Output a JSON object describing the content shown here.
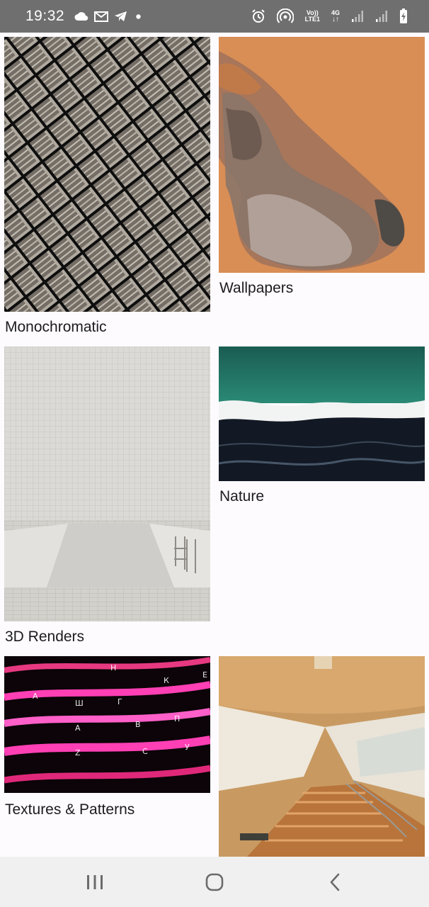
{
  "status_bar": {
    "time": "19:32",
    "left_icons": [
      "cloud-icon",
      "mail-icon",
      "telegram-icon",
      "dot-icon"
    ],
    "right_icons": [
      "alarm-icon",
      "hotspot-icon",
      "volte-icon",
      "4g-icon",
      "signal-icon",
      "signal-icon",
      "battery-charging-icon"
    ],
    "volte_top": "Vo))",
    "volte_bottom": "LTE1",
    "network_type": "4G"
  },
  "categories": [
    {
      "label": "Monochromatic",
      "image": "dark grid building facade"
    },
    {
      "label": "Wallpapers",
      "image": "draped fabric on orange"
    },
    {
      "label": "3D Renders",
      "image": "white tiled pool render"
    },
    {
      "label": "Nature",
      "image": "aerial ocean shoreline"
    },
    {
      "label": "Textures & Patterns",
      "image": "pink neon light trails"
    },
    {
      "label": "",
      "image": "wooden staircase interior"
    }
  ],
  "nav_bar": {
    "buttons": [
      "recents-icon",
      "home-icon",
      "back-icon"
    ]
  },
  "colors": {
    "status_bar_bg": "#6f6f70",
    "page_bg": "#fefbff",
    "nav_bar_bg": "#f0f0f0",
    "wallpaper_orange": "#d98e55",
    "nature_teal": "#1f5d52",
    "neon_pink": "#ff3fb4"
  }
}
